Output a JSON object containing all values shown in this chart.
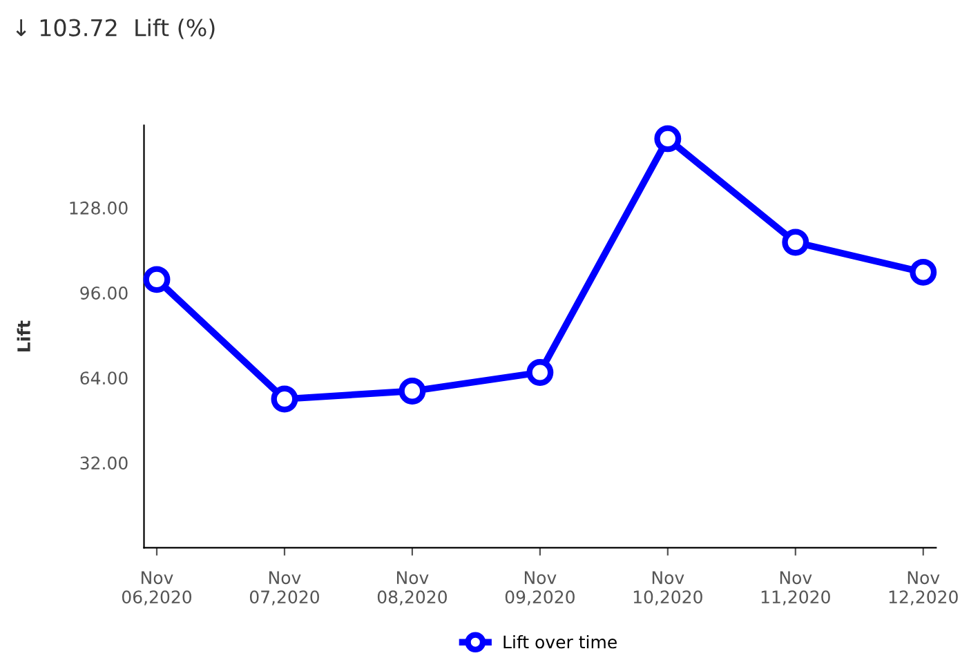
{
  "chart_data": {
    "type": "line",
    "title": "↓ 103.72  Lift (%)",
    "ylabel": "Lift",
    "categories": [
      "Nov\n06,2020",
      "Nov\n07,2020",
      "Nov\n08,2020",
      "Nov\n09,2020",
      "Nov\n10,2020",
      "Nov\n11,2020",
      "Nov\n12,2020"
    ],
    "series": [
      {
        "name": "Lift over time",
        "color": "#0000ff",
        "values": [
          101,
          56,
          59,
          66,
          154,
          115,
          103.72
        ]
      }
    ],
    "ylim": [
      0,
      159
    ],
    "yticks": [
      {
        "value": 32,
        "label": "32.00"
      },
      {
        "value": 64,
        "label": "64.00"
      },
      {
        "value": 96,
        "label": "96.00"
      },
      {
        "value": 128,
        "label": "128.00"
      }
    ],
    "marker": "circle",
    "line_style": "solid",
    "grid": false,
    "legend": "bottom"
  }
}
